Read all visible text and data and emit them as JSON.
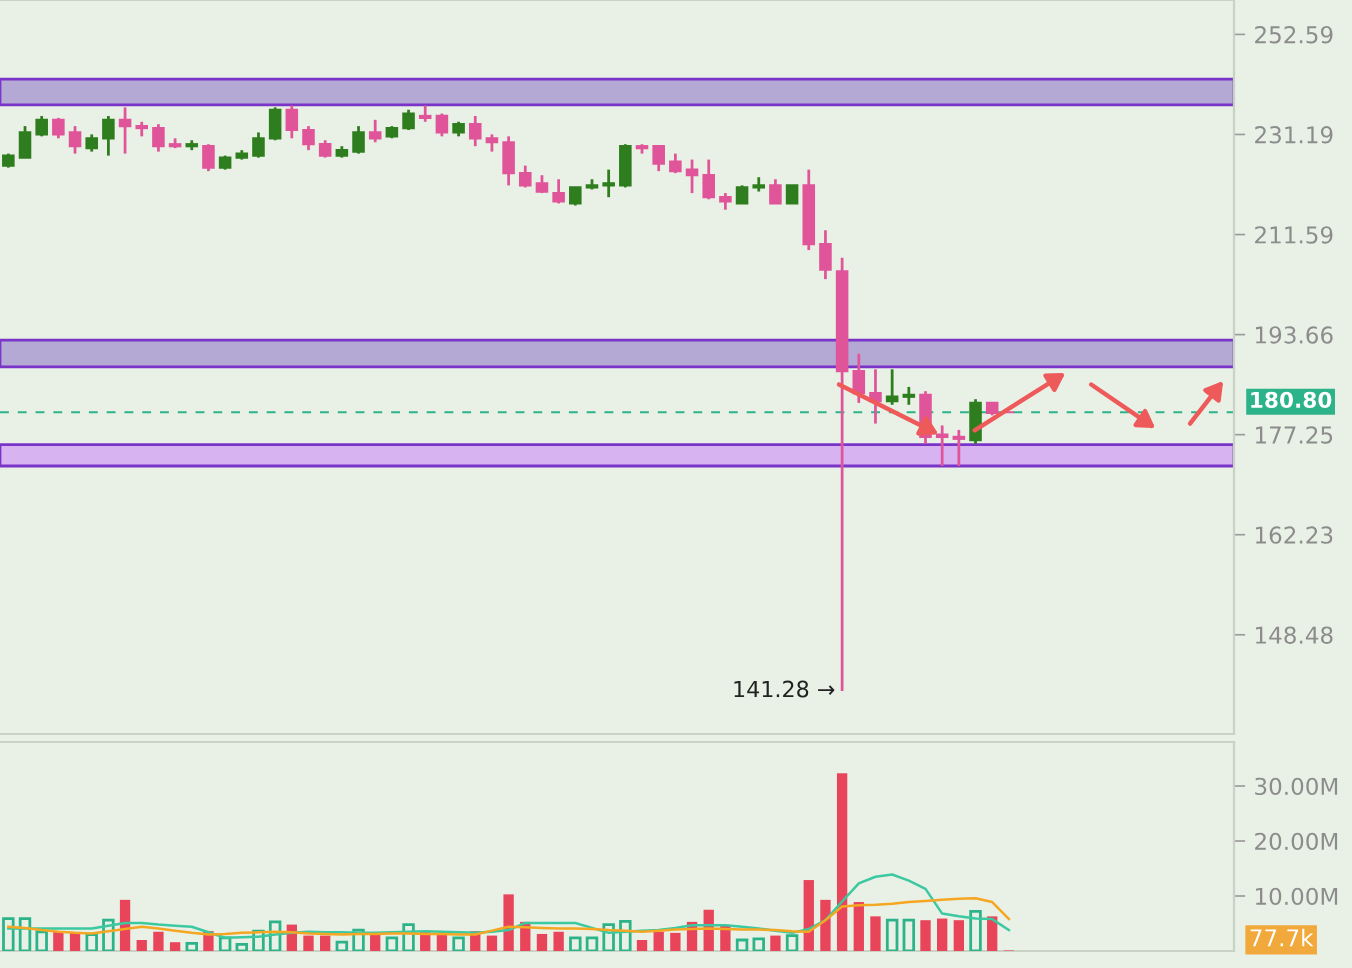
{
  "chart_data": [
    {
      "type": "candlestick",
      "categories": [
        null,
        null,
        null,
        null,
        null,
        null,
        null,
        null,
        null,
        null,
        null,
        null,
        null,
        null,
        null,
        null,
        null,
        null,
        null,
        null,
        null,
        null,
        null,
        null,
        null,
        null,
        null,
        null,
        null,
        null,
        null,
        null,
        null,
        null,
        null,
        null,
        null,
        null,
        null,
        null,
        null,
        null,
        null,
        null,
        null,
        null,
        null,
        null,
        null,
        null,
        null,
        null,
        null,
        null,
        null,
        null,
        null,
        null,
        null,
        null,
        null,
        null,
        null,
        null,
        null,
        null,
        null,
        null,
        null,
        null,
        null,
        null,
        null,
        null
      ],
      "ohlc": [
        [
          224.9,
          227.3,
          224.5,
          226.9
        ],
        [
          226.5,
          232.9,
          226.5,
          231.6
        ],
        [
          231.2,
          235.0,
          230.8,
          234.2
        ],
        [
          234.2,
          234.6,
          230.4,
          231.2
        ],
        [
          231.6,
          232.9,
          227.3,
          228.8
        ],
        [
          228.4,
          231.2,
          227.7,
          230.4
        ],
        [
          230.4,
          235.0,
          226.9,
          234.2
        ],
        [
          234.2,
          236.8,
          227.3,
          232.9
        ],
        [
          232.9,
          233.8,
          230.8,
          232.5
        ],
        [
          232.5,
          233.3,
          227.7,
          228.8
        ],
        [
          229.2,
          230.4,
          228.4,
          228.8
        ],
        [
          228.8,
          230.0,
          228.0,
          229.2
        ],
        [
          228.8,
          229.2,
          223.8,
          224.5
        ],
        [
          224.5,
          226.9,
          224.1,
          226.5
        ],
        [
          226.5,
          228.0,
          226.1,
          227.3
        ],
        [
          226.9,
          231.6,
          226.5,
          230.4
        ],
        [
          230.4,
          236.8,
          230.0,
          236.3
        ],
        [
          236.3,
          237.2,
          230.4,
          232.1
        ],
        [
          232.1,
          232.9,
          228.0,
          229.2
        ],
        [
          229.2,
          230.0,
          226.5,
          226.9
        ],
        [
          226.9,
          228.8,
          226.5,
          228.0
        ],
        [
          227.7,
          232.9,
          227.3,
          231.6
        ],
        [
          231.6,
          234.2,
          229.6,
          230.4
        ],
        [
          230.8,
          232.9,
          230.4,
          232.5
        ],
        [
          232.5,
          236.3,
          232.1,
          235.5
        ],
        [
          235.0,
          237.2,
          233.8,
          234.6
        ],
        [
          235.0,
          235.5,
          230.8,
          231.6
        ],
        [
          231.6,
          233.8,
          230.8,
          233.3
        ],
        [
          233.3,
          235.0,
          228.8,
          230.4
        ],
        [
          230.4,
          231.2,
          227.7,
          229.6
        ],
        [
          229.6,
          230.8,
          221.0,
          223.4
        ],
        [
          223.4,
          224.9,
          220.6,
          221.0
        ],
        [
          221.4,
          223.0,
          219.5,
          219.8
        ],
        [
          219.5,
          222.2,
          217.5,
          217.9
        ],
        [
          217.5,
          220.6,
          217.1,
          220.6
        ],
        [
          220.6,
          222.2,
          220.2,
          221.0
        ],
        [
          221.0,
          224.1,
          218.7,
          221.4
        ],
        [
          221.0,
          229.2,
          220.6,
          228.8
        ],
        [
          228.8,
          229.2,
          227.3,
          228.4
        ],
        [
          228.8,
          228.8,
          223.8,
          225.3
        ],
        [
          225.7,
          227.3,
          223.4,
          223.8
        ],
        [
          224.1,
          226.1,
          219.5,
          223.0
        ],
        [
          223.0,
          226.1,
          218.3,
          218.7
        ],
        [
          218.7,
          219.5,
          216.3,
          217.9
        ],
        [
          217.5,
          221.0,
          217.5,
          220.6
        ],
        [
          220.6,
          222.6,
          219.8,
          221.0
        ],
        [
          221.0,
          222.2,
          217.5,
          217.5
        ],
        [
          217.5,
          221.0,
          217.5,
          221.0
        ],
        [
          221.0,
          224.1,
          208.7,
          209.8
        ],
        [
          209.8,
          212.4,
          203.4,
          205.1
        ],
        [
          204.8,
          207.3,
          141.28,
          187.5
        ],
        [
          187.5,
          190.4,
          182.3,
          183.9
        ],
        [
          183.9,
          187.8,
          179.0,
          182.6
        ],
        [
          182.6,
          187.8,
          182.0,
          183.3
        ],
        [
          183.3,
          184.9,
          182.0,
          183.6
        ],
        [
          183.6,
          184.2,
          175.8,
          176.9
        ],
        [
          177.25,
          178.7,
          172.4,
          176.9
        ],
        [
          176.9,
          178.0,
          172.4,
          176.6
        ],
        [
          176.4,
          182.9,
          175.8,
          182.3
        ],
        [
          182.3,
          182.3,
          180.3,
          180.7
        ],
        [
          180.8,
          180.8,
          180.8,
          180.8
        ],
        null,
        null,
        null,
        null,
        null,
        null,
        null,
        null,
        null,
        null,
        null,
        null,
        null
      ],
      "colors": [
        "#2e7d1e",
        "#2e7d1e",
        "#2e7d1e",
        "#e0559a",
        "#e0559a",
        "#2e7d1e",
        "#2e7d1e",
        "#e0559a",
        "#e0559a",
        "#e0559a",
        "#e0559a",
        "#2e7d1e",
        "#e0559a",
        "#2e7d1e",
        "#2e7d1e",
        "#2e7d1e",
        "#2e7d1e",
        "#e0559a",
        "#e0559a",
        "#e0559a",
        "#2e7d1e",
        "#2e7d1e",
        "#e0559a",
        "#2e7d1e",
        "#2e7d1e",
        "#e0559a",
        "#e0559a",
        "#2e7d1e",
        "#e0559a",
        "#e0559a",
        "#e0559a",
        "#e0559a",
        "#e0559a",
        "#e0559a",
        "#2e7d1e",
        "#2e7d1e",
        "#2e7d1e",
        "#2e7d1e",
        "#e0559a",
        "#e0559a",
        "#e0559a",
        "#e0559a",
        "#e0559a",
        "#e0559a",
        "#2e7d1e",
        "#2e7d1e",
        "#e0559a",
        "#2e7d1e",
        "#e0559a",
        "#e0559a",
        "#e0559a",
        "#e0559a",
        "#e0559a",
        "#2e7d1e",
        "#2e7d1e",
        "#e0559a",
        "#e0559a",
        "#e0559a",
        "#2e7d1e",
        "#e0559a",
        "#e0559a",
        null,
        null,
        null,
        null,
        null,
        null,
        null,
        null,
        null,
        null,
        null,
        null,
        null
      ],
      "log": "y",
      "ylim": [
        136.0,
        260.4
      ],
      "yticks": [
        148.48,
        162.23,
        177.25,
        193.66,
        211.59,
        231.19,
        252.59
      ],
      "tick_labels": "y",
      "grid": false,
      "bands": [
        {
          "axis": "y",
          "from": 237.3,
          "to": 242.8,
          "color": "#b3a9d4"
        },
        {
          "axis": "y",
          "from": 188.2,
          "to": 192.7,
          "color": "#b3a9d4"
        },
        {
          "axis": "y",
          "from": 172.4,
          "to": 175.7,
          "color": "#d7b3f2"
        }
      ],
      "ref_lines": [
        {
          "axis": "y",
          "value": 180.8,
          "label": "180.80",
          "color": "#2db38a",
          "line_style": "dashed"
        }
      ],
      "annotations": [
        "141.28 →"
      ]
    },
    {
      "type": "bar",
      "categories": [
        null,
        null,
        null,
        null,
        null,
        null,
        null,
        null,
        null,
        null,
        null,
        null,
        null,
        null,
        null,
        null,
        null,
        null,
        null,
        null,
        null,
        null,
        null,
        null,
        null,
        null,
        null,
        null,
        null,
        null,
        null,
        null,
        null,
        null,
        null,
        null,
        null,
        null,
        null,
        null,
        null,
        null,
        null,
        null,
        null,
        null,
        null,
        null,
        null,
        null,
        null,
        null,
        null,
        null,
        null,
        null,
        null,
        null,
        null,
        null,
        null,
        null,
        null,
        null,
        null,
        null,
        null,
        null,
        null,
        null,
        null,
        null,
        null,
        null
      ],
      "series": [
        {
          "color": "#e8445a",
          "values": [
            null,
            null,
            null,
            3.5,
            3.3,
            null,
            null,
            9.3,
            2.0,
            3.5,
            1.6,
            null,
            3.6,
            null,
            null,
            null,
            null,
            4.8,
            2.8,
            2.8,
            null,
            null,
            3.3,
            null,
            null,
            3.6,
            3.3,
            null,
            3.6,
            2.8,
            10.3,
            5.3,
            3.1,
            3.5,
            null,
            null,
            null,
            null,
            2.0,
            3.5,
            3.3,
            5.3,
            7.5,
            4.7,
            null,
            null,
            2.8,
            null,
            12.9,
            9.3,
            32.3,
            8.9,
            6.3,
            null,
            null,
            5.6,
            5.9,
            5.6,
            null,
            6.3,
            0.1,
            null,
            null,
            null,
            null,
            null,
            null,
            null,
            null,
            null,
            null,
            null,
            null,
            null
          ]
        },
        {
          "color": "#2db38a",
          "values": [
            5.9,
            5.9,
            3.5,
            null,
            null,
            3.0,
            5.6,
            null,
            null,
            null,
            null,
            1.4,
            null,
            2.4,
            1.2,
            3.6,
            5.3,
            null,
            null,
            null,
            1.6,
            3.8,
            null,
            2.4,
            4.8,
            null,
            null,
            2.4,
            null,
            null,
            null,
            null,
            null,
            null,
            2.4,
            2.4,
            4.8,
            5.4,
            null,
            null,
            null,
            null,
            null,
            null,
            2.0,
            2.2,
            null,
            2.8,
            null,
            null,
            null,
            null,
            null,
            5.6,
            5.6,
            null,
            null,
            null,
            7.2,
            null,
            null,
            null,
            null,
            null,
            null,
            null,
            null,
            null,
            null,
            null,
            null,
            null,
            null,
            null
          ]
        },
        {
          "type": "line",
          "color": "#3cc8a0",
          "values": [
            4.1,
            4.1,
            4.1,
            4.1,
            4.1,
            4.1,
            4.6,
            5.1,
            5.1,
            4.8,
            4.6,
            4.4,
            3.4,
            2.4,
            2.5,
            2.6,
            3.0,
            3.3,
            3.5,
            3.4,
            3.4,
            3.3,
            3.3,
            3.4,
            3.5,
            3.6,
            3.5,
            3.4,
            3.3,
            3.5,
            3.8,
            5.1,
            5.1,
            5.1,
            5.1,
            4.2,
            3.3,
            3.5,
            3.7,
            3.8,
            4.2,
            4.7,
            4.7,
            4.7,
            4.4,
            4.1,
            3.7,
            3.3,
            4.0,
            5.6,
            9.0,
            12.3,
            13.5,
            13.9,
            12.8,
            11.3,
            6.8,
            6.3,
            5.9,
            5.8,
            3.8,
            null,
            null,
            null,
            null,
            null,
            null,
            null,
            null,
            null,
            null,
            null,
            null,
            null
          ]
        },
        {
          "type": "line",
          "color": "#f5a623",
          "values": [
            4.4,
            4.2,
            3.8,
            3.5,
            3.3,
            3.2,
            3.6,
            4.0,
            4.4,
            4.1,
            3.7,
            3.3,
            3.0,
            3.1,
            3.3,
            3.4,
            3.5,
            3.4,
            3.2,
            3.1,
            3.0,
            3.1,
            3.1,
            3.2,
            3.2,
            3.1,
            3.1,
            3.0,
            3.0,
            3.7,
            4.4,
            4.3,
            4.2,
            4.1,
            4.1,
            4.0,
            3.8,
            3.7,
            3.5,
            3.7,
            3.9,
            4.0,
            4.1,
            4.0,
            3.9,
            3.9,
            3.8,
            3.6,
            3.5,
            5.6,
            8.1,
            8.3,
            8.4,
            8.6,
            8.9,
            9.1,
            9.3,
            9.5,
            9.6,
            8.9,
            5.8,
            null,
            null,
            null,
            null,
            null,
            null,
            null,
            null,
            null,
            null,
            null,
            null,
            null
          ]
        }
      ],
      "ylim": [
        0,
        38
      ],
      "yticks": [
        {
          "value": 10,
          "label": "10.00M"
        },
        {
          "value": 20,
          "label": "20.00M"
        },
        {
          "value": 30,
          "label": "30.00M"
        }
      ],
      "tick_labels": "y",
      "grid": false,
      "annotations": [
        "77.7k"
      ]
    }
  ]
}
